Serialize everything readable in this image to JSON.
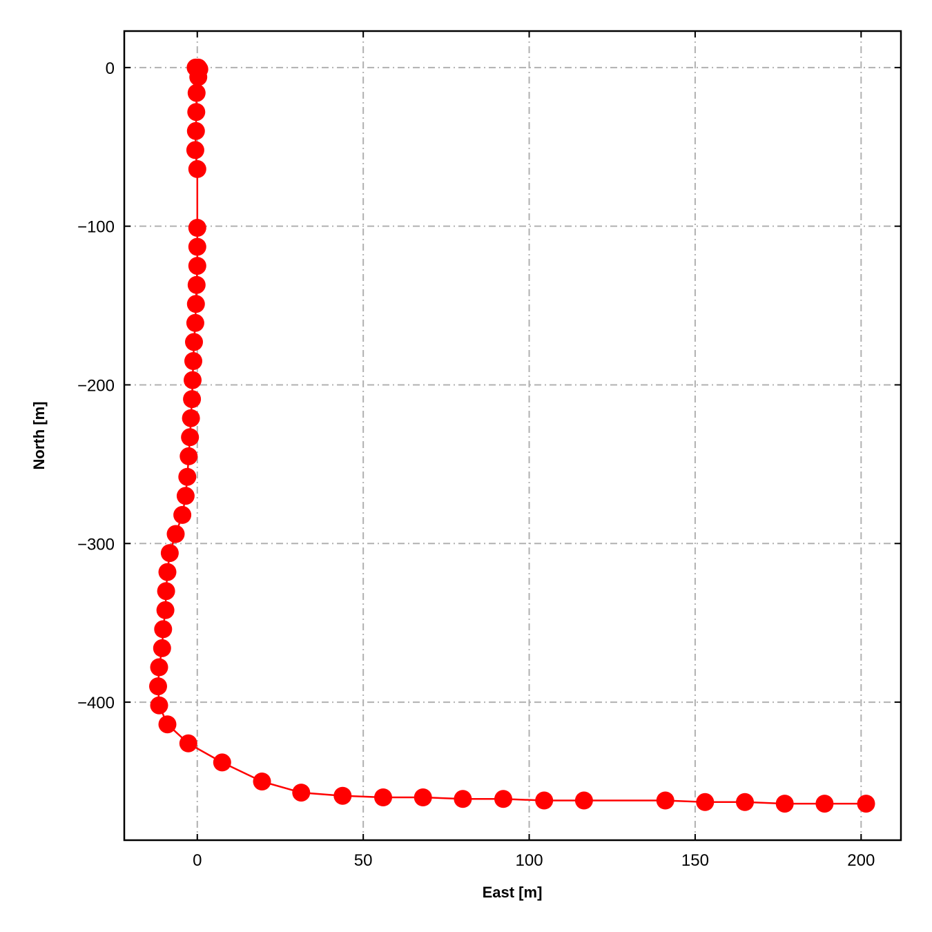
{
  "chart_data": {
    "type": "line",
    "xlabel": "East [m]",
    "ylabel": "North [m]",
    "xlim": [
      -22,
      212
    ],
    "ylim": [
      -487,
      23
    ],
    "xticks": [
      0,
      50,
      100,
      150,
      200
    ],
    "yticks": [
      0,
      -100,
      -200,
      -300,
      -400
    ],
    "xtick_labels": [
      "0",
      "50",
      "100",
      "150",
      "200"
    ],
    "ytick_labels": [
      "0",
      "−100",
      "−200",
      "−300",
      "−400"
    ],
    "grid": true,
    "series": [
      {
        "color": "#ff0000",
        "markers": true,
        "x": [
          -0.5,
          0.3,
          0.6,
          0.3,
          -0.2,
          -0.3,
          -0.4,
          -0.6,
          0.0,
          0.0,
          0.0,
          0.0,
          -0.2,
          -0.4,
          -0.6,
          -1.0,
          -1.2,
          -1.4,
          -1.6,
          -1.9,
          -2.2,
          -2.6,
          -3.0,
          -3.5,
          -4.5,
          -6.5,
          -8.3,
          -9.0,
          -9.4,
          -9.6,
          -10.3,
          -10.6,
          -11.5,
          -11.8,
          -11.5,
          -9.0,
          -2.7,
          7.5,
          19.5,
          31.3,
          43.8,
          56.0,
          68.0,
          80.0,
          92.2,
          104.5,
          116.5,
          141.0,
          153.0,
          165.0,
          177.0,
          189.0,
          201.5
        ],
        "y": [
          0,
          0,
          -1,
          -6,
          -16,
          -28,
          -40,
          -52,
          -64,
          -101,
          -113,
          -125,
          -137,
          -149,
          -161,
          -173,
          -185,
          -197,
          -209,
          -221,
          -233,
          -245,
          -258,
          -270,
          -282,
          -294,
          -306,
          -318,
          -330,
          -342,
          -354,
          -366,
          -378,
          -390,
          -402,
          -414,
          -426,
          -438,
          -450,
          -457,
          -459,
          -460,
          -460,
          -461,
          -461,
          -462,
          -462,
          -462,
          -463,
          -463,
          -464,
          -464,
          -464
        ]
      }
    ]
  }
}
